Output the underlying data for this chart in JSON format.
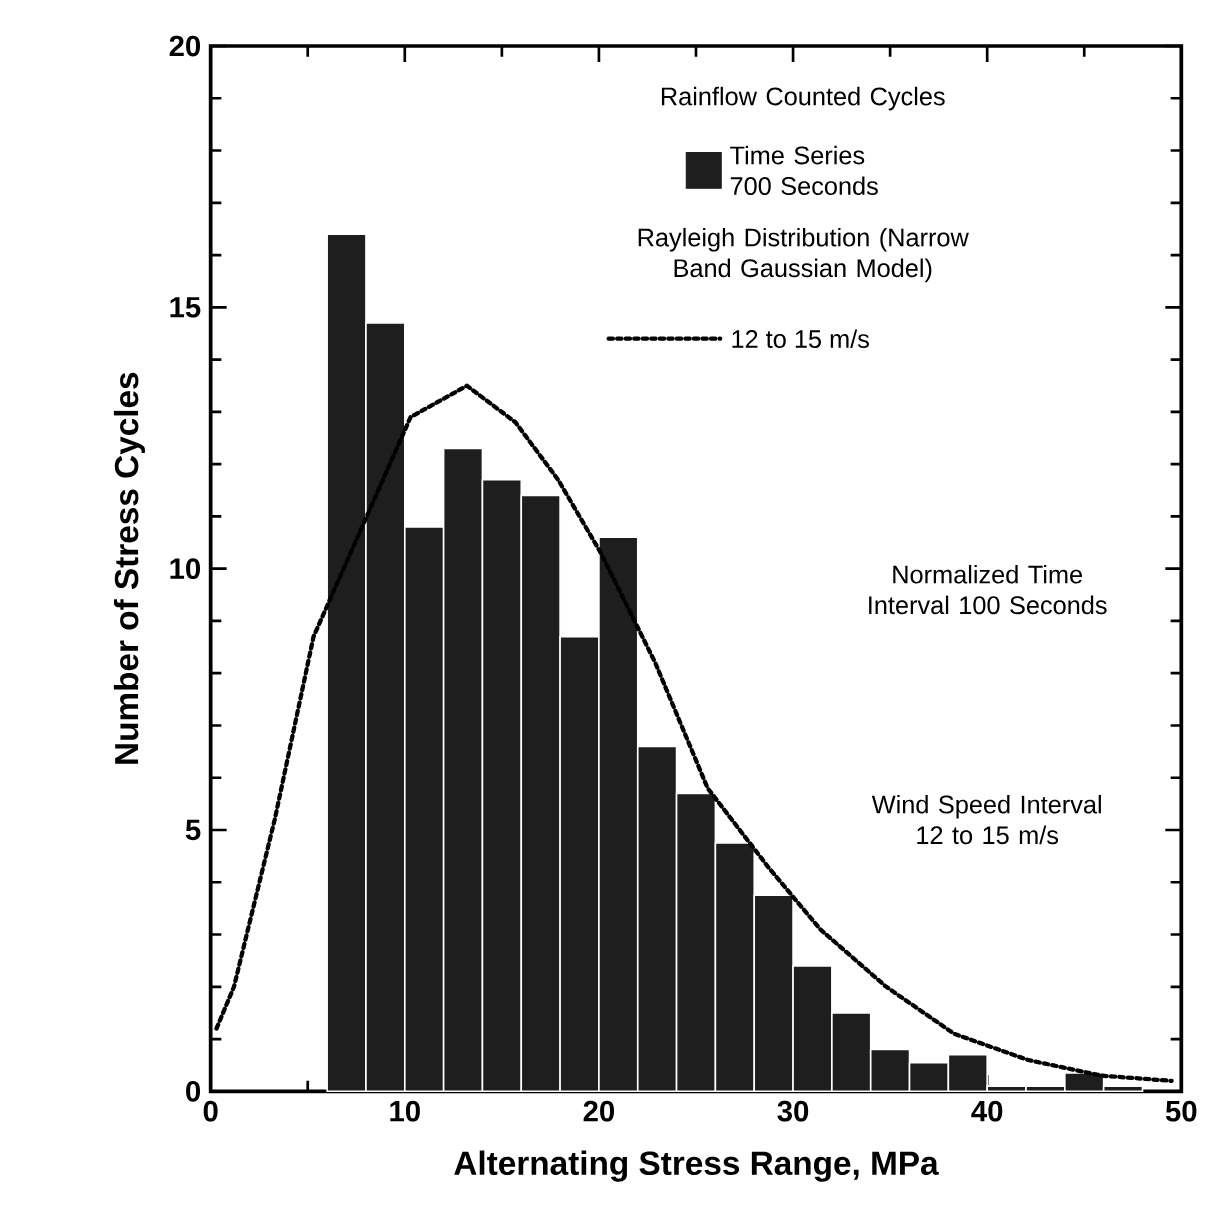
{
  "chart_data": {
    "type": "histogram",
    "xlabel": "Alternating Stress Range, MPa",
    "ylabel": "Number of Stress Cycles",
    "bins": [
      6,
      8,
      10,
      12,
      14,
      16,
      18,
      20,
      22,
      24,
      26,
      28,
      30,
      32,
      34,
      36,
      38,
      40,
      42,
      44,
      46,
      48
    ],
    "series": [
      {
        "name": "Time Series 700 Seconds",
        "color": "#1e1e1e",
        "values": [
          16.4,
          14.7,
          10.8,
          12.3,
          11.7,
          11.4,
          8.7,
          10.6,
          6.6,
          5.7,
          4.75,
          3.75,
          2.4,
          1.5,
          0.8,
          0.55,
          0.7,
          0.1,
          0.1,
          0.35,
          0.1
        ]
      },
      {
        "name": "12 to 15 m/s",
        "type": "line",
        "color": "#000000",
        "line_style": "dotted",
        "x": [
          0.3,
          1.2,
          3.3,
          5.3,
          10.3,
          13.2,
          15.7,
          17.9,
          20.1,
          22.9,
          25.6,
          28.7,
          31.4,
          34.8,
          38.3,
          42.1,
          45.9,
          49.5
        ],
        "values": [
          1.2,
          2.0,
          5.2,
          8.7,
          12.9,
          13.5,
          12.8,
          11.7,
          10.3,
          8.2,
          5.8,
          4.3,
          3.1,
          2.0,
          1.1,
          0.6,
          0.3,
          0.2
        ]
      }
    ],
    "annotations": [
      "Rainflow Counted Cycles",
      "Rayleigh Distribution (Narrow Band Gaussian Model)",
      "Normalized Time Interval 100 Seconds",
      "Wind Speed Interval 12 to 15 m/s"
    ],
    "xlim": [
      0,
      50
    ],
    "ylim": [
      0,
      20
    ],
    "xticks": [
      0,
      10,
      20,
      30,
      40,
      50
    ],
    "yticks": [
      0,
      5,
      10,
      15,
      20
    ],
    "grid": false,
    "legend": "top right",
    "marker": "none"
  }
}
